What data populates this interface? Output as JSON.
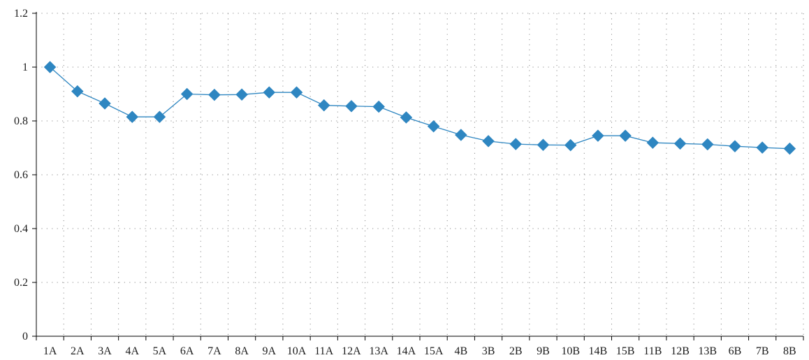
{
  "chart_data": {
    "type": "line",
    "title": "",
    "xlabel": "",
    "ylabel": "",
    "categories": [
      "1A",
      "2A",
      "3A",
      "4A",
      "5A",
      "6A",
      "7A",
      "8A",
      "9A",
      "10A",
      "11A",
      "12A",
      "13A",
      "14A",
      "15A",
      "4B",
      "3B",
      "2B",
      "9B",
      "10B",
      "14B",
      "15B",
      "11B",
      "12B",
      "13B",
      "6B",
      "7B",
      "8B"
    ],
    "series": [
      {
        "values": [
          1.0,
          0.91,
          0.865,
          0.815,
          0.815,
          0.9,
          0.897,
          0.898,
          0.906,
          0.906,
          0.858,
          0.855,
          0.853,
          0.813,
          0.78,
          0.748,
          0.725,
          0.714,
          0.711,
          0.71,
          0.745,
          0.745,
          0.719,
          0.716,
          0.713,
          0.706,
          0.701,
          0.697
        ]
      }
    ],
    "ylim": [
      0,
      1.2
    ],
    "yticks": [
      0,
      0.2,
      0.4,
      0.6,
      0.8,
      1,
      1.2
    ],
    "ytick_labels": [
      "0",
      "0.2",
      "0.4",
      "0.6",
      "0.8",
      "1",
      "1.2"
    ],
    "grid": true,
    "colors": {
      "series": "#2e86c1",
      "axis": "#000000",
      "grid": "#8c8c8c"
    }
  }
}
